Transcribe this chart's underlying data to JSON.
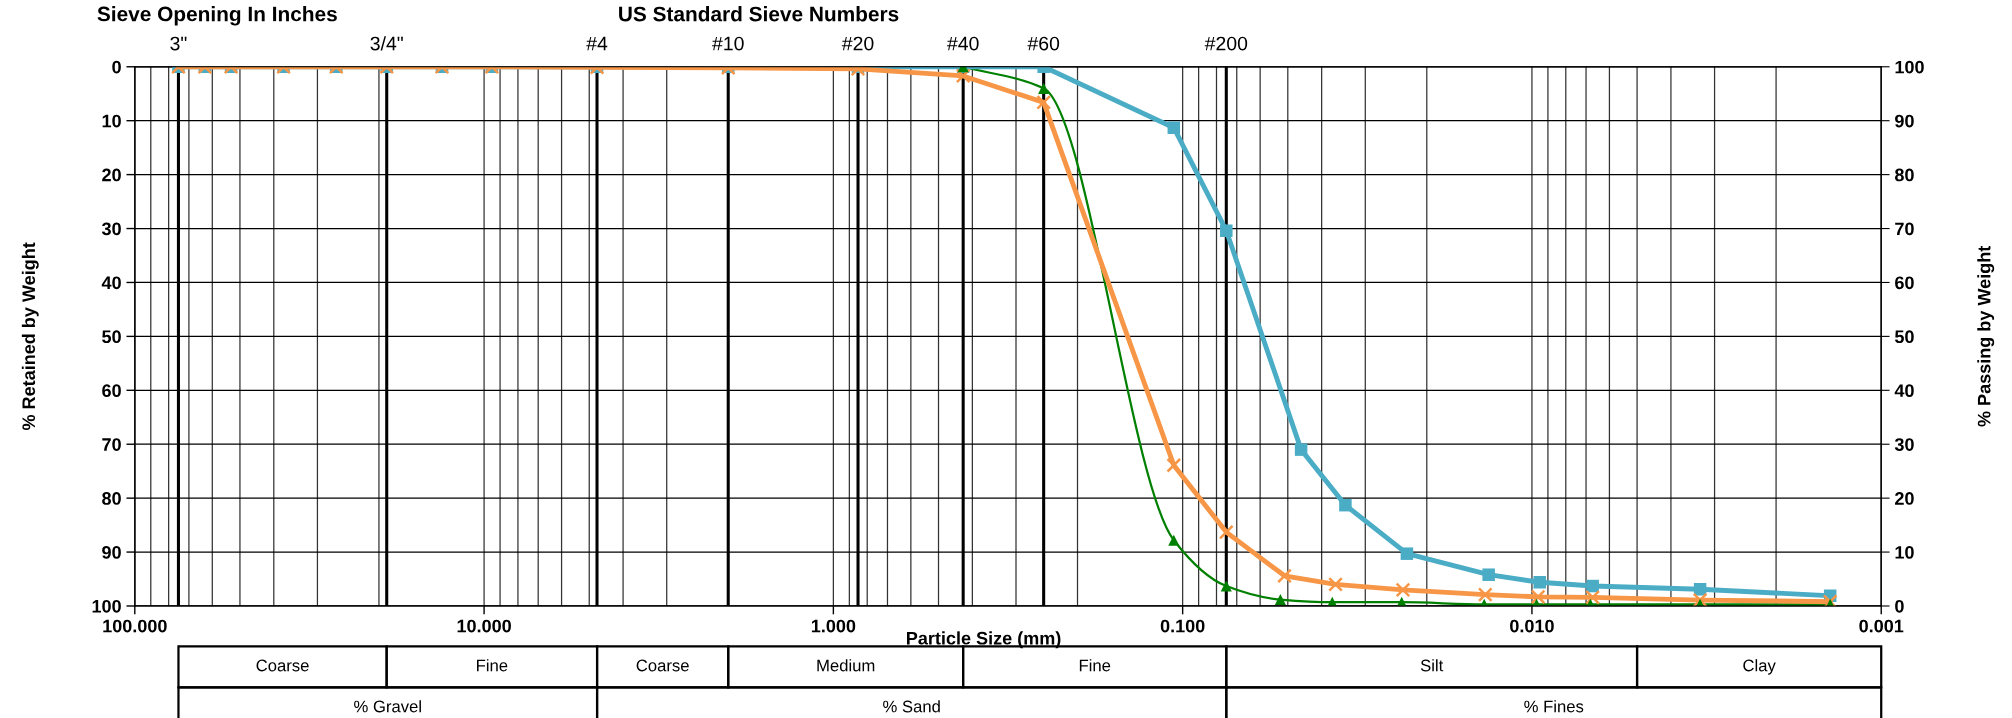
{
  "chart_data": {
    "type": "line",
    "xlabel": "Particle Size (mm)",
    "ylabel": "% Retained by Weight",
    "y2label": "% Passing by Weight",
    "annotations": [
      "Sieve Opening In Inches",
      "US Standard Sieve Numbers",
      "Coarse",
      "Fine",
      "Coarse",
      "Medium",
      "Fine",
      "Silt",
      "Clay",
      "% Gravel",
      "% Sand",
      "% Fines",
      "3\"",
      "3/4\"",
      "#4",
      "#10",
      "#20",
      "#40",
      "#60",
      "#200"
    ],
    "log": "x",
    "grid": true,
    "xlim": [
      100,
      0.001
    ],
    "xticks": [
      {
        "value": 100,
        "label": "100.000"
      },
      {
        "value": 10,
        "label": "10.000"
      },
      {
        "value": 1,
        "label": "1.000"
      },
      {
        "value": 0.1,
        "label": "0.100"
      },
      {
        "value": 0.01,
        "label": "0.010"
      },
      {
        "value": 0.001,
        "label": "0.001"
      }
    ],
    "ylim": [
      100,
      0
    ],
    "yticks": [
      0,
      10,
      20,
      30,
      40,
      50,
      60,
      70,
      80,
      90,
      100
    ],
    "y2lim": [
      0,
      100
    ],
    "y2ticks": [
      0,
      10,
      20,
      30,
      40,
      50,
      60,
      70,
      80,
      90,
      100
    ],
    "ref_lines": [
      {
        "axis": "x",
        "value": 75
      },
      {
        "axis": "x",
        "value": 19
      },
      {
        "axis": "x",
        "value": 4.75
      },
      {
        "axis": "x",
        "value": 2.0
      },
      {
        "axis": "x",
        "value": 0.85
      },
      {
        "axis": "x",
        "value": 0.425
      },
      {
        "axis": "x",
        "value": 0.25
      },
      {
        "axis": "x",
        "value": 0.075
      }
    ],
    "series": [
      {
        "color": "#008000",
        "marker": "triangle",
        "line_style": "solid",
        "x": [
          0.425,
          0.25,
          0.106,
          0.075,
          0.0525,
          0.0373,
          0.0236,
          0.0137,
          0.0097,
          0.0068,
          0.0033,
          0.0014
        ],
        "values": [
          0,
          4,
          87.8,
          96.3,
          98.8,
          99.3,
          99.3,
          99.7,
          99.7,
          99.7,
          99.7,
          99.7
        ]
      },
      {
        "color": "#4bacc6",
        "marker": "square",
        "line_style": "solid",
        "x": [
          75,
          63,
          53,
          37.5,
          26.5,
          19,
          13.2,
          9.5,
          4.75,
          2.0,
          0.85,
          0.425,
          0.25,
          0.106,
          0.075,
          0.0458,
          0.0342,
          0.0228,
          0.0133,
          0.0095,
          0.0067,
          0.0033,
          0.0014
        ],
        "values": [
          0,
          0,
          0,
          0,
          0,
          0,
          0,
          0,
          0,
          0,
          0,
          0,
          0,
          11.3,
          30.4,
          71,
          81.3,
          90.3,
          94.2,
          95.6,
          96.3,
          96.9,
          98.1
        ]
      },
      {
        "color": "#f79646",
        "marker": "cross",
        "line_style": "solid",
        "x": [
          75,
          63,
          53,
          37.5,
          26.5,
          19,
          13.2,
          9.5,
          4.75,
          2.0,
          0.85,
          0.425,
          0.25,
          0.106,
          0.075,
          0.0511,
          0.0365,
          0.0234,
          0.0136,
          0.0096,
          0.0067,
          0.0033,
          0.0014
        ],
        "values": [
          0,
          0,
          0,
          0,
          0,
          0,
          0,
          0,
          0.1,
          0.2,
          0.4,
          1.7,
          6.6,
          73.9,
          86.3,
          94.4,
          96.0,
          97.0,
          97.9,
          98.3,
          98.4,
          98.9,
          99.2
        ]
      }
    ]
  }
}
